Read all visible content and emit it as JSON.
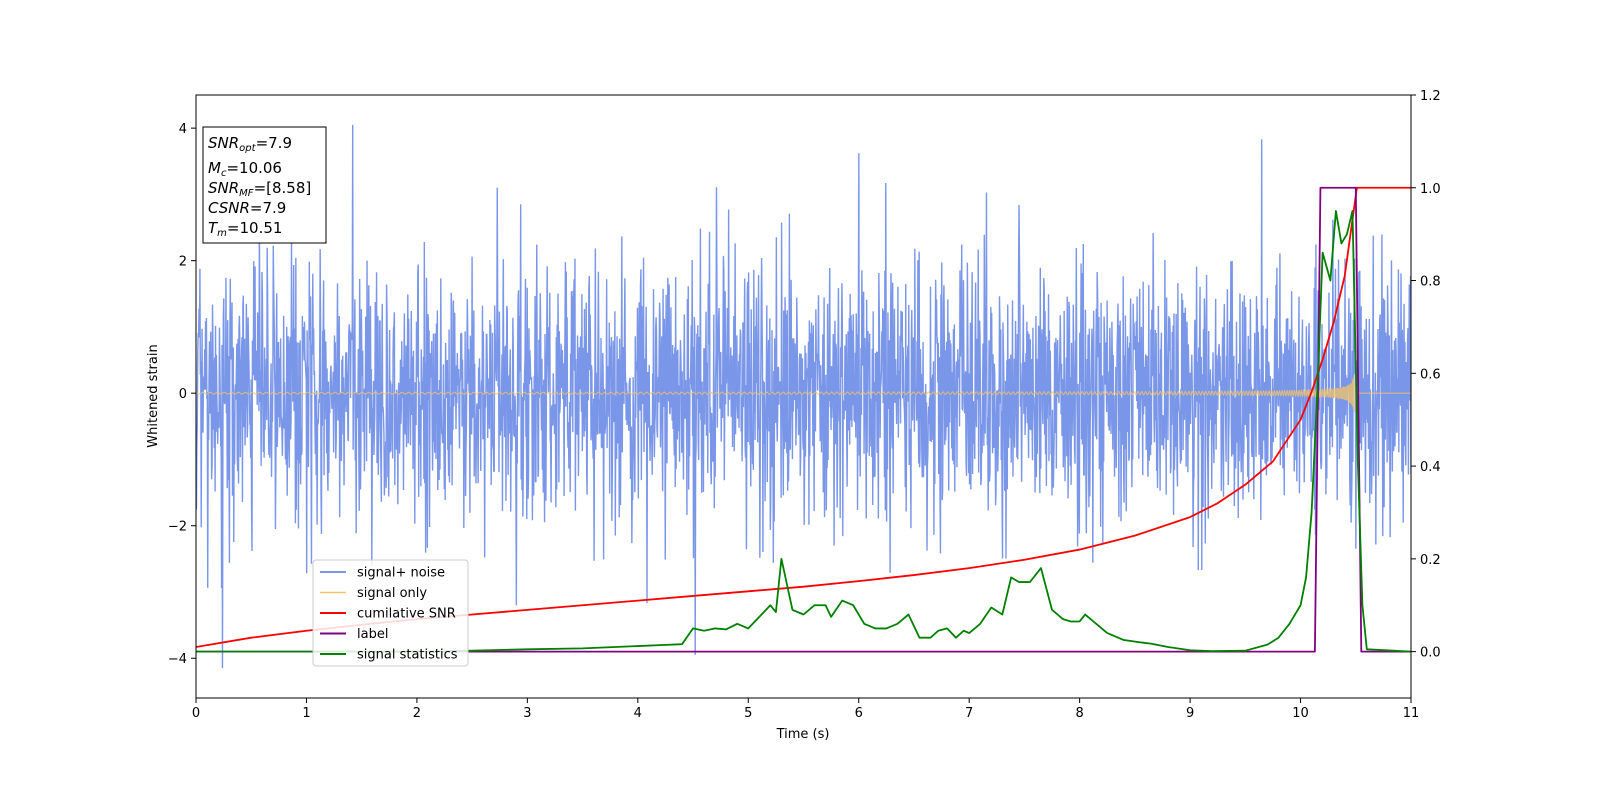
{
  "chart_data": {
    "type": "line",
    "title": "",
    "xlabel": "Time (s)",
    "ylabel": "Whitened strain",
    "xlim": [
      0,
      11
    ],
    "ylim": [
      -4.6,
      4.5
    ],
    "y2lim": [
      -0.1,
      1.2
    ],
    "x_ticks": [
      "0",
      "1",
      "2",
      "3",
      "4",
      "5",
      "6",
      "7",
      "8",
      "9",
      "10",
      "11"
    ],
    "y_ticks": [
      "−4",
      "−2",
      "0",
      "2",
      "4"
    ],
    "y2_ticks": [
      "0.0",
      "0.2",
      "0.4",
      "0.6",
      "0.8",
      "1.0",
      "1.2"
    ],
    "grid": false,
    "legend_position": "lower-left",
    "info_box": [
      {
        "name": "SNR",
        "sub": "opt",
        "value": "=7.9"
      },
      {
        "name": "M",
        "sub": "c",
        "value": "=10.06"
      },
      {
        "name": "SNR",
        "sub": "MF",
        "value": "=[8.58]"
      },
      {
        "name": "CSNR",
        "sub": "",
        "value": "=7.9"
      },
      {
        "name": "T",
        "sub": "m",
        "value": "=10.51"
      }
    ],
    "series": [
      {
        "name": "signal+ noise",
        "axis": "left",
        "color": "#7a96e8",
        "kind": "noise",
        "sigma": 0.95,
        "duration": 11,
        "samples": 2800,
        "notable_peaks": [
          [
            1.42,
            4.05
          ],
          [
            0.24,
            -4.15
          ],
          [
            4.52,
            -3.95
          ],
          [
            9.65,
            3.83
          ],
          [
            6.0,
            3.62
          ],
          [
            2.9,
            -3.2
          ]
        ]
      },
      {
        "name": "signal only",
        "axis": "left",
        "color": "#f5c46a",
        "kind": "chirp",
        "merger_time": 10.51,
        "peak_amplitude": 0.55
      },
      {
        "name": "cumilative SNR",
        "axis": "right",
        "color": "#ff0000",
        "x": [
          0,
          0.5,
          1,
          1.5,
          2,
          2.5,
          3,
          3.5,
          4,
          4.5,
          5,
          5.5,
          6,
          6.5,
          7,
          7.5,
          8,
          8.5,
          9,
          9.25,
          9.5,
          9.75,
          10,
          10.1,
          10.2,
          10.3,
          10.4,
          10.51,
          11
        ],
        "values": [
          0.01,
          0.03,
          0.045,
          0.058,
          0.07,
          0.08,
          0.09,
          0.1,
          0.11,
          0.12,
          0.13,
          0.14,
          0.152,
          0.165,
          0.18,
          0.198,
          0.22,
          0.25,
          0.29,
          0.32,
          0.36,
          0.41,
          0.5,
          0.56,
          0.63,
          0.71,
          0.81,
          1.0,
          1.0
        ]
      },
      {
        "name": "label",
        "axis": "right",
        "color": "#800080",
        "x": [
          0,
          10.13,
          10.18,
          10.5,
          10.55,
          11
        ],
        "values": [
          0,
          0,
          1,
          1,
          0,
          0
        ]
      },
      {
        "name": "signal statistics",
        "axis": "right",
        "color": "#008000",
        "x": [
          0,
          1,
          2,
          2.5,
          3,
          3.5,
          4,
          4.2,
          4.4,
          4.5,
          4.6,
          4.7,
          4.8,
          4.9,
          5.0,
          5.1,
          5.2,
          5.25,
          5.3,
          5.4,
          5.5,
          5.6,
          5.7,
          5.75,
          5.85,
          5.95,
          6.05,
          6.15,
          6.25,
          6.35,
          6.45,
          6.55,
          6.65,
          6.72,
          6.8,
          6.88,
          6.95,
          7.0,
          7.1,
          7.2,
          7.3,
          7.38,
          7.45,
          7.55,
          7.65,
          7.75,
          7.85,
          7.92,
          8.0,
          8.05,
          8.15,
          8.25,
          8.4,
          8.55,
          8.65,
          8.8,
          9.0,
          9.2,
          9.5,
          9.7,
          9.8,
          9.9,
          10.0,
          10.05,
          10.1,
          10.15,
          10.2,
          10.27,
          10.32,
          10.37,
          10.42,
          10.47,
          10.52,
          10.56,
          10.6,
          11
        ],
        "values": [
          0,
          0,
          0,
          0.002,
          0.005,
          0.007,
          0.012,
          0.014,
          0.016,
          0.05,
          0.045,
          0.05,
          0.048,
          0.06,
          0.05,
          0.075,
          0.1,
          0.085,
          0.2,
          0.09,
          0.08,
          0.1,
          0.1,
          0.075,
          0.11,
          0.1,
          0.06,
          0.05,
          0.05,
          0.06,
          0.08,
          0.03,
          0.03,
          0.045,
          0.05,
          0.03,
          0.045,
          0.04,
          0.06,
          0.095,
          0.08,
          0.16,
          0.15,
          0.15,
          0.18,
          0.09,
          0.07,
          0.065,
          0.065,
          0.08,
          0.06,
          0.04,
          0.025,
          0.02,
          0.017,
          0.01,
          0.003,
          0.001,
          0.002,
          0.015,
          0.03,
          0.06,
          0.1,
          0.16,
          0.3,
          0.55,
          0.86,
          0.8,
          0.95,
          0.88,
          0.9,
          0.95,
          0.4,
          0.1,
          0.005,
          0
        ]
      }
    ]
  }
}
